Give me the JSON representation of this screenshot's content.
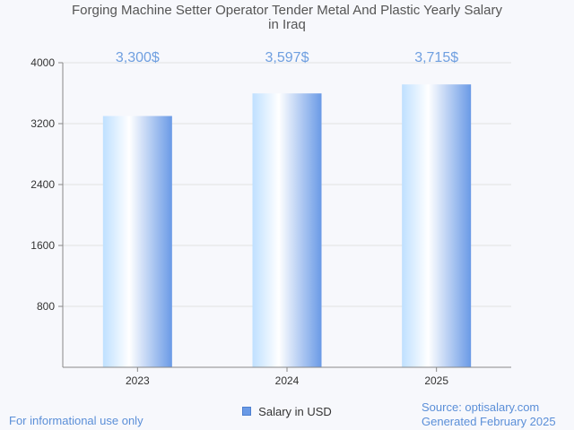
{
  "title": {
    "line1": "Forging Machine Setter Operator Tender Metal And Plastic Yearly Salary",
    "line2": "in Iraq"
  },
  "legend": {
    "label": "Salary in USD"
  },
  "footer": {
    "disclaimer": "For informational use only",
    "source": "Source: optisalary.com",
    "generated": "Generated February 2025"
  },
  "colors": {
    "accent": "#6a9ae6",
    "label": "#6f9fe0",
    "grid": "#e2e2e2"
  },
  "chart_data": {
    "type": "bar",
    "categories": [
      "2023",
      "2024",
      "2025"
    ],
    "values": [
      3300,
      3597,
      3715
    ],
    "value_labels": [
      "3,300$",
      "3,597$",
      "3,715$"
    ],
    "series": [
      {
        "name": "Salary in USD",
        "values": [
          3300,
          3597,
          3715
        ]
      }
    ],
    "y_ticks": [
      800,
      1600,
      2400,
      3200,
      4000
    ],
    "ylim": [
      0,
      4000
    ],
    "grid": true,
    "legend_position": "bottom"
  }
}
